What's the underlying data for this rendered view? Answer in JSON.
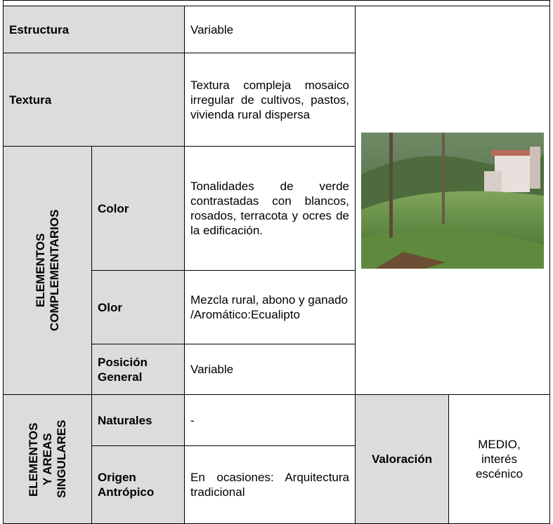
{
  "table": {
    "estructura": {
      "label": "Estructura",
      "value": "Variable"
    },
    "textura": {
      "label": "Textura",
      "value": "Textura compleja mosaico irregular de cultivos, pastos, vivienda rural dispersa"
    },
    "complementarios": {
      "label": "ELEMENTOS COMPLEMENTARIOS",
      "color": {
        "label": "Color",
        "value": "Tonalidades de verde contrastadas con blancos, rosados, terracota y ocres de la edificación."
      },
      "olor": {
        "label": "Olor",
        "value": "Mezcla rural, abono y ganado /Aromático:Ecualipto"
      },
      "posicion": {
        "label": "Posición General",
        "value": "Variable"
      }
    },
    "singulares": {
      "label": "ELEMENTOS Y AREAS SINGULARES",
      "naturales": {
        "label": "Naturales",
        "value": "-"
      },
      "antropico": {
        "label": "Origen Antrópico",
        "value": "En ocasiones: Arquitectura tradicional"
      }
    },
    "valoracion": {
      "label": "Valoración",
      "value": "MEDIO, interés escénico"
    }
  }
}
